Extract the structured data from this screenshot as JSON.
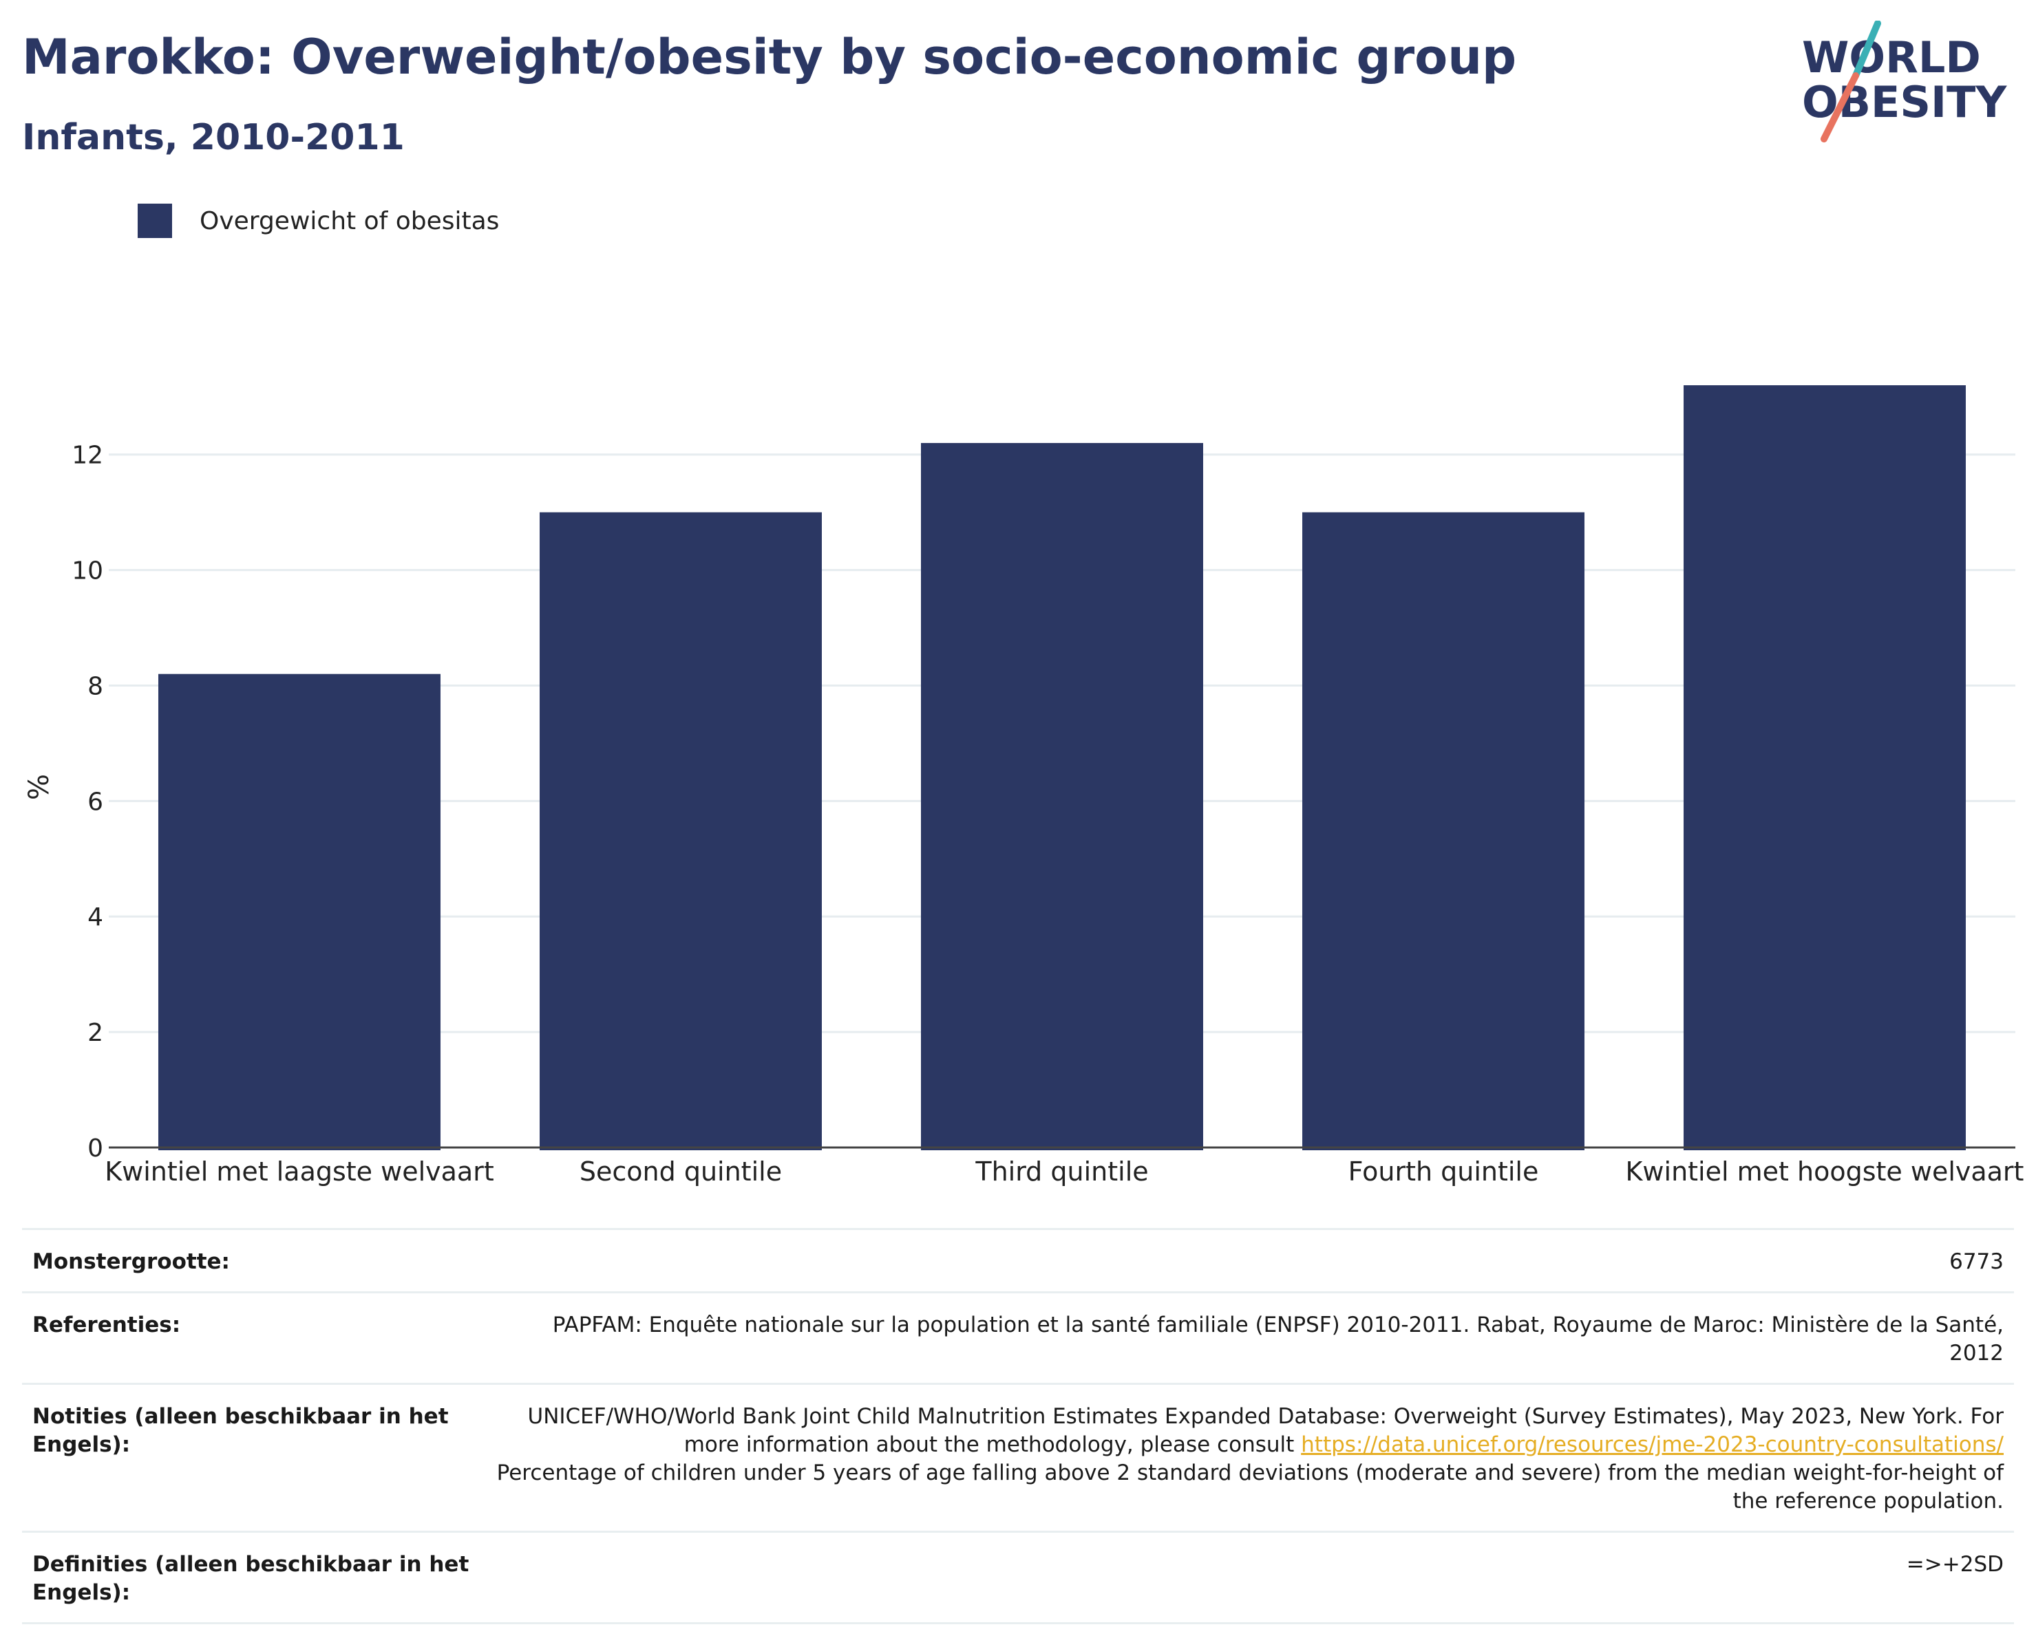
{
  "header": {
    "title": "Marokko: Overweight/obesity by socio-economic group",
    "subtitle": "Infants, 2010-2011"
  },
  "logo": {
    "line1": "WORLD",
    "line2": "OBESITY"
  },
  "colors": {
    "bar": "#2b3763",
    "title": "#2b3763",
    "grid": "#e6ecef",
    "link": "#e5ad23",
    "logo_teal": "#3ab0b5",
    "logo_coral": "#e8735f"
  },
  "chart_data": {
    "type": "bar",
    "categories": [
      "Kwintiel met laagste welvaart",
      "Second quintile",
      "Third quintile",
      "Fourth quintile",
      "Kwintiel met hoogste welvaart"
    ],
    "series": [
      {
        "name": "Overgewicht of obesitas",
        "values": [
          8.2,
          11.0,
          12.2,
          11.0,
          13.2
        ]
      }
    ],
    "title": "Marokko: Overweight/obesity by socio-economic group",
    "subtitle": "Infants, 2010-2011",
    "xlabel": "",
    "ylabel": "%",
    "ylim": [
      0,
      13.2
    ],
    "yticks": [
      0,
      2,
      4,
      6,
      8,
      10,
      12
    ],
    "grid": true,
    "legend": "top-left"
  },
  "info": {
    "sample_label": "Monstergrootte:",
    "sample_value": "6773",
    "references_label": "Referenties:",
    "references_value": "PAPFAM: Enquête nationale sur la population et la santé familiale (ENPSF) 2010-2011. Rabat, Royaume de Maroc: Ministère de la Santé, 2012",
    "notes_label": "Notities (alleen beschikbaar in het Engels):",
    "notes_line1": "UNICEF/WHO/World Bank Joint Child Malnutrition Estimates Expanded Database: Overweight (Survey Estimates), May 2023, New York. For more information about the methodology, please consult",
    "notes_link": "https://data.unicef.org/resources/jme-2023-country-consultations/",
    "notes_line2": "Percentage of children under 5 years of age falling above 2 standard deviations (moderate and severe) from the median weight-for-height of the reference population.",
    "definitions_label": "Definities (alleen beschikbaar in het Engels):",
    "definitions_value": "=>+2SD"
  }
}
